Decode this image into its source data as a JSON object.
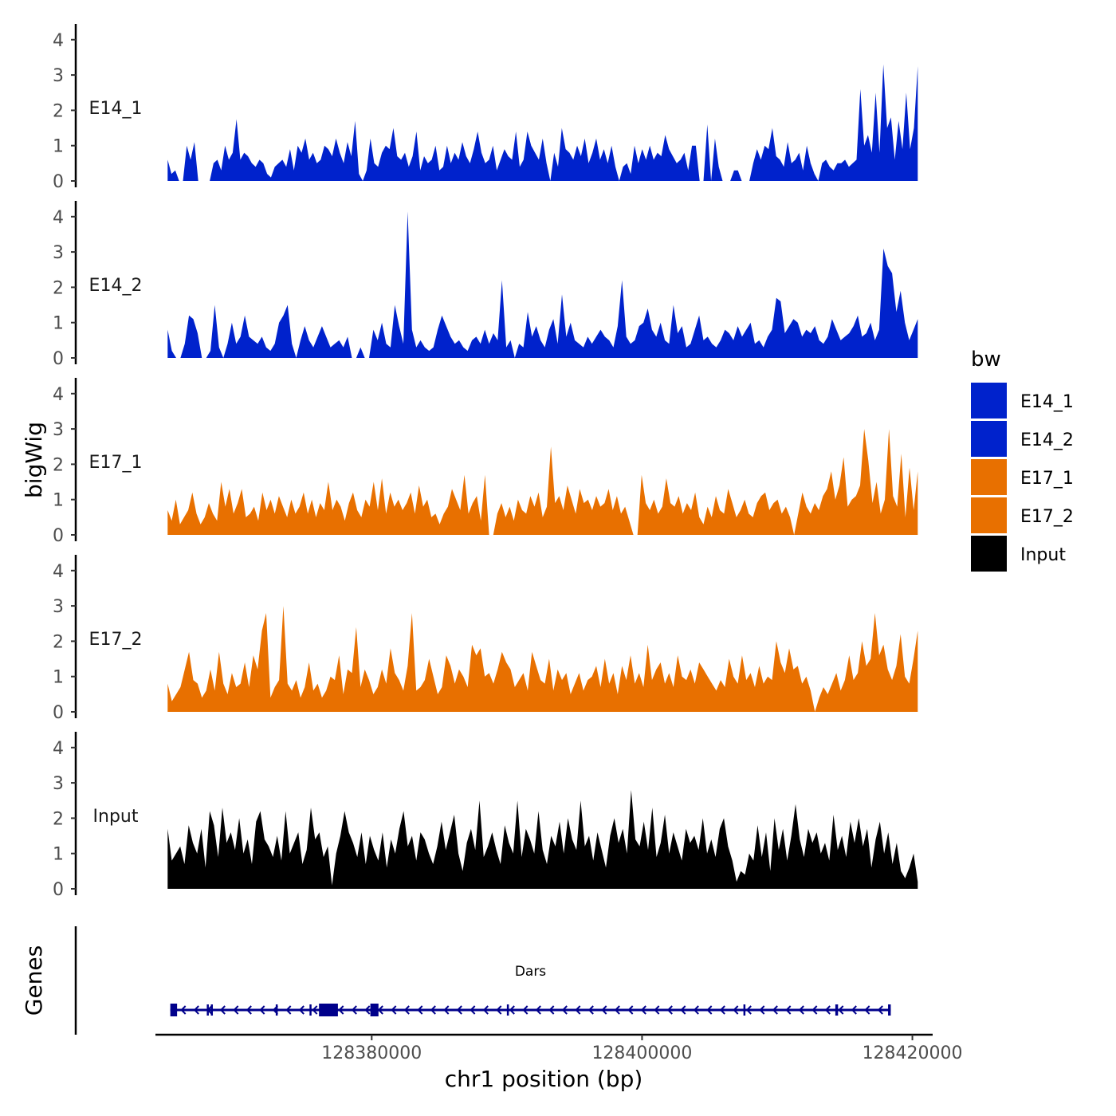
{
  "chart_data": {
    "type": "area",
    "ylabel": "bigWig",
    "xlabel": "chr1 position (bp)",
    "y_ticks": [
      "0",
      "1",
      "2",
      "3",
      "4"
    ],
    "ylim": [
      0,
      4.2
    ],
    "xlim": [
      128364000,
      128421500
    ],
    "x_ticks": [
      {
        "value": 128380000,
        "label": "128380000"
      },
      {
        "value": 128400000,
        "label": "128400000"
      },
      {
        "value": 128420000,
        "label": "128420000"
      }
    ],
    "legend": {
      "title": "bw",
      "entries": [
        {
          "label": "E14_1",
          "color": "#0022cc"
        },
        {
          "label": "E14_2",
          "color": "#0022cc"
        },
        {
          "label": "E17_1",
          "color": "#e87000"
        },
        {
          "label": "E17_2",
          "color": "#e87000"
        },
        {
          "label": "Input",
          "color": "#000000"
        }
      ]
    },
    "series": [
      {
        "name": "E14_1",
        "color": "#0022cc",
        "x_start": 128364900,
        "x_end": 128420400,
        "values": [
          0.6,
          0.2,
          0.3,
          0,
          0,
          1.0,
          0.6,
          1.1,
          0,
          0,
          0,
          0,
          0.5,
          0.6,
          0.3,
          1.0,
          0.6,
          0.8,
          1.75,
          0.6,
          0.8,
          0.7,
          0.5,
          0.4,
          0.6,
          0.5,
          0.2,
          0.1,
          0.4,
          0.5,
          0.6,
          0.4,
          0.9,
          0.3,
          1.0,
          0.8,
          1.2,
          0.6,
          0.8,
          0.5,
          0.6,
          1.0,
          0.9,
          0.7,
          1.2,
          0.8,
          0.5,
          1.1,
          0.7,
          1.7,
          0.2,
          0,
          0.3,
          1.2,
          0.5,
          0.4,
          0.8,
          1.0,
          0.9,
          1.5,
          0.7,
          0.6,
          0.8,
          0.4,
          0.7,
          1.4,
          0.3,
          0.7,
          0.5,
          0.6,
          1.0,
          0.3,
          0.4,
          1.0,
          0.5,
          0.8,
          0.6,
          1.1,
          0.7,
          0.5,
          0.9,
          1.4,
          0.8,
          0.5,
          0.6,
          1.0,
          0.3,
          0.6,
          0.9,
          0.7,
          0.6,
          1.4,
          0.4,
          0.6,
          1.4,
          1.0,
          0.8,
          0.6,
          1.2,
          0.5,
          0,
          0.8,
          0.4,
          1.5,
          0.9,
          0.8,
          0.6,
          1.0,
          0.7,
          1.2,
          0.5,
          0.8,
          1.2,
          0.6,
          0.9,
          0.5,
          1.0,
          0.4,
          0,
          0.4,
          0.5,
          0.2,
          1.0,
          0.5,
          0.9,
          0.6,
          1.0,
          0.6,
          0.8,
          0.7,
          1.3,
          0.9,
          0.7,
          0.5,
          0.6,
          0.8,
          0.3,
          1.0,
          1.0,
          0,
          0,
          1.6,
          0,
          1.2,
          0.4,
          0,
          0,
          0,
          0.3,
          0.3,
          0,
          0,
          0,
          0.5,
          0.9,
          0.6,
          1.0,
          0.9,
          1.5,
          0.7,
          0.6,
          0.4,
          1.1,
          0.5,
          0.6,
          0.8,
          0.3,
          1.0,
          0.5,
          0.2,
          0,
          0.5,
          0.6,
          0.4,
          0.3,
          0.5,
          0.5,
          0.6,
          0.4,
          0.5,
          0.6,
          2.6,
          1.0,
          1.3,
          0.8,
          2.5,
          0.8,
          3.3,
          1.5,
          1.8,
          0.6,
          1.7,
          0.9,
          2.5,
          0.9,
          1.5,
          3.25
        ]
      },
      {
        "name": "E14_2",
        "color": "#0022cc",
        "x_start": 128364900,
        "x_end": 128420400,
        "values": [
          0.8,
          0.2,
          0,
          0,
          0.4,
          1.2,
          1.1,
          0.7,
          0,
          0,
          0.2,
          1.5,
          0.3,
          0,
          0.4,
          1.0,
          0.4,
          0.6,
          1.2,
          0.6,
          0.5,
          0.4,
          0.6,
          0.3,
          0.2,
          0.4,
          1.0,
          1.2,
          1.5,
          0.4,
          0,
          0.5,
          0.9,
          0.5,
          0.3,
          0.6,
          0.9,
          0.6,
          0.3,
          0.4,
          0.5,
          0.3,
          0.6,
          0,
          0,
          0.3,
          0,
          0,
          0.8,
          0.5,
          1.0,
          0.4,
          0.3,
          1.5,
          0.9,
          0.4,
          4.15,
          0.8,
          0.3,
          0.5,
          0.3,
          0.2,
          0.3,
          0.8,
          1.2,
          0.9,
          0.6,
          0.4,
          0.5,
          0.3,
          0.2,
          0.5,
          0.6,
          0.4,
          0.8,
          0.4,
          0.7,
          0.5,
          2.2,
          0.3,
          0.5,
          0,
          0.4,
          0.3,
          1.3,
          0.6,
          0.9,
          0.5,
          0.3,
          0.8,
          1.1,
          0.4,
          1.8,
          0.6,
          1.0,
          0.5,
          0.4,
          0.3,
          0.6,
          0.4,
          0.6,
          0.8,
          0.6,
          0.5,
          0.3,
          0.9,
          2.2,
          0.6,
          0.4,
          0.5,
          0.9,
          1.0,
          1.4,
          0.8,
          0.6,
          1.0,
          0.5,
          0.4,
          1.5,
          0.7,
          0.9,
          0.3,
          0.4,
          0.8,
          1.2,
          0.5,
          0.6,
          0.4,
          0.3,
          0.5,
          0.8,
          0.7,
          0.5,
          0.9,
          0.6,
          0.8,
          1.0,
          0.4,
          0.5,
          0.3,
          0.6,
          0.8,
          1.7,
          1.6,
          0.7,
          0.9,
          1.1,
          1.0,
          0.6,
          0.8,
          0.7,
          0.9,
          0.5,
          0.4,
          0.6,
          1.1,
          0.8,
          0.5,
          0.6,
          0.7,
          0.9,
          1.2,
          0.6,
          0.7,
          1.0,
          0.5,
          0.8,
          3.1,
          2.6,
          2.4,
          1.3,
          1.9,
          1.0,
          0.5,
          0.8,
          1.1
        ]
      },
      {
        "name": "E17_1",
        "color": "#e87000",
        "x_start": 128364900,
        "x_end": 128420400,
        "values": [
          0.7,
          0.4,
          1.0,
          0.3,
          0.5,
          0.7,
          1.2,
          0.6,
          0.3,
          0.5,
          0.9,
          0.6,
          0.4,
          1.5,
          0.8,
          1.3,
          0.6,
          0.9,
          1.3,
          0.5,
          0.6,
          0.8,
          0.4,
          1.2,
          0.7,
          1.0,
          0.6,
          1.1,
          0.8,
          0.5,
          1.0,
          0.6,
          0.8,
          1.2,
          0.6,
          1.0,
          0.5,
          0.9,
          0.7,
          1.5,
          0.7,
          1.0,
          0.8,
          0.4,
          0.9,
          1.2,
          0.7,
          0.5,
          1.0,
          0.8,
          1.5,
          0.7,
          1.6,
          0.6,
          1.2,
          0.8,
          1.0,
          0.7,
          0.9,
          1.2,
          0.6,
          1.4,
          0.8,
          1.0,
          0.5,
          0.6,
          0.3,
          0.6,
          0.8,
          1.3,
          1.0,
          0.7,
          1.7,
          0.6,
          0.9,
          1.1,
          0.4,
          1.7,
          0,
          0,
          0.6,
          0.9,
          0.5,
          0.8,
          0.4,
          1.0,
          0.7,
          0.6,
          1.1,
          0.8,
          1.2,
          0.5,
          0.8,
          2.5,
          0.9,
          1.1,
          0.7,
          1.4,
          1.0,
          0.6,
          1.3,
          0.9,
          1.0,
          0.7,
          1.1,
          0.8,
          0.9,
          1.3,
          0.7,
          1.1,
          0.6,
          0.8,
          0.4,
          0,
          0,
          1.7,
          0.9,
          0.7,
          1.0,
          0.6,
          0.8,
          1.6,
          0.9,
          0.8,
          1.1,
          0.6,
          0.9,
          0.7,
          1.2,
          0.5,
          0.3,
          0.8,
          0.5,
          1.1,
          0.7,
          0.6,
          1.3,
          0.9,
          0.5,
          0.7,
          1.0,
          0.6,
          0.5,
          0.9,
          1.1,
          1.2,
          0.7,
          0.9,
          1.0,
          0.6,
          0.8,
          0.5,
          0,
          0.6,
          1.2,
          0.8,
          0.6,
          0.9,
          0.7,
          1.1,
          1.3,
          1.8,
          1.0,
          1.4,
          2.2,
          0.8,
          1.0,
          1.1,
          1.4,
          3.0,
          2.1,
          0.9,
          1.5,
          0.6,
          1.0,
          3.0,
          1.1,
          0.8,
          2.3,
          0.5,
          1.9,
          0.7,
          1.8
        ]
      },
      {
        "name": "E17_2",
        "color": "#e87000",
        "x_start": 128364900,
        "x_end": 128420400,
        "values": [
          0.8,
          0.3,
          0.5,
          0.7,
          1.2,
          1.7,
          0.9,
          0.8,
          0.4,
          0.6,
          1.2,
          0.6,
          1.7,
          0.8,
          0.5,
          1.1,
          0.7,
          0.8,
          1.4,
          0.7,
          1.6,
          1.2,
          2.3,
          2.8,
          0.4,
          0.7,
          0.9,
          3.0,
          0.8,
          0.6,
          0.9,
          0.4,
          0.7,
          1.4,
          0.6,
          0.8,
          0.4,
          0.6,
          1.0,
          0.9,
          1.6,
          0.5,
          1.2,
          1.1,
          2.4,
          0.7,
          1.2,
          0.9,
          0.5,
          0.7,
          1.2,
          0.8,
          1.8,
          1.1,
          0.9,
          0.6,
          1.3,
          2.8,
          0.6,
          0.7,
          0.9,
          1.5,
          1.0,
          0.5,
          0.7,
          1.6,
          1.3,
          0.8,
          1.2,
          1.0,
          0.7,
          1.9,
          1.6,
          1.8,
          1.0,
          1.1,
          0.8,
          1.2,
          1.7,
          1.4,
          1.2,
          0.7,
          0.9,
          1.1,
          0.6,
          1.7,
          1.3,
          0.9,
          0.8,
          1.5,
          0.6,
          1.2,
          0.9,
          1.1,
          0.5,
          0.8,
          1.1,
          0.6,
          0.9,
          1.0,
          1.3,
          0.7,
          1.5,
          0.8,
          1.1,
          0.5,
          1.3,
          0.9,
          1.6,
          0.8,
          1.1,
          0.7,
          1.9,
          0.9,
          1.2,
          1.4,
          0.8,
          1.1,
          0.7,
          1.6,
          1.0,
          0.9,
          1.2,
          0.8,
          1.4,
          1.2,
          1.0,
          0.8,
          0.6,
          0.9,
          0.7,
          1.5,
          1.0,
          0.8,
          1.6,
          0.9,
          1.1,
          0.7,
          1.3,
          0.8,
          1.0,
          0.9,
          2.0,
          1.4,
          1.1,
          1.8,
          1.2,
          1.3,
          0.8,
          1.0,
          0.6,
          0,
          0.4,
          0.7,
          0.5,
          0.8,
          1.1,
          0.6,
          0.9,
          1.6,
          0.9,
          1.1,
          2.0,
          1.3,
          1.5,
          2.8,
          1.6,
          1.9,
          1.2,
          0.9,
          1.3,
          2.2,
          1.0,
          0.8,
          1.5,
          2.3
        ]
      },
      {
        "name": "Input",
        "color": "#000000",
        "x_start": 128364900,
        "x_end": 128420400,
        "values": [
          1.7,
          0.8,
          1.0,
          1.2,
          0.7,
          1.8,
          1.3,
          1.0,
          1.7,
          0.6,
          2.2,
          1.8,
          0.9,
          2.3,
          1.3,
          1.6,
          1.1,
          2.0,
          1.0,
          1.4,
          0.7,
          1.9,
          2.2,
          1.4,
          1.2,
          0.9,
          1.5,
          0.8,
          2.2,
          1.0,
          1.3,
          1.6,
          0.7,
          1.1,
          2.3,
          1.4,
          1.6,
          0.9,
          1.2,
          0.1,
          1.0,
          1.5,
          2.2,
          1.6,
          1.3,
          0.9,
          1.6,
          0.7,
          1.5,
          1.1,
          0.8,
          1.6,
          0.6,
          1.4,
          1.0,
          1.7,
          2.2,
          1.2,
          1.5,
          0.8,
          1.6,
          1.4,
          1.0,
          0.7,
          1.2,
          1.9,
          1.1,
          1.6,
          2.1,
          1.0,
          0.5,
          1.3,
          1.7,
          1.1,
          2.5,
          0.9,
          1.2,
          1.6,
          1.1,
          0.7,
          1.8,
          1.3,
          1.0,
          2.5,
          0.9,
          1.7,
          1.4,
          1.0,
          2.2,
          1.1,
          0.7,
          1.5,
          1.2,
          1.9,
          1.0,
          2.0,
          1.4,
          1.1,
          2.5,
          1.2,
          1.5,
          0.8,
          1.6,
          1.1,
          0.6,
          1.5,
          2.0,
          1.3,
          1.7,
          1.0,
          2.8,
          1.4,
          1.2,
          1.9,
          1.1,
          2.3,
          0.9,
          1.3,
          2.1,
          1.0,
          1.6,
          1.2,
          0.8,
          1.7,
          1.3,
          1.5,
          1.1,
          2.0,
          1.0,
          1.4,
          0.9,
          1.7,
          2.0,
          1.2,
          0.8,
          0.2,
          0.5,
          0.4,
          1.0,
          0.8,
          1.8,
          0.9,
          1.6,
          0.5,
          2.0,
          1.1,
          1.7,
          0.8,
          1.5,
          2.4,
          1.4,
          0.9,
          1.7,
          1.3,
          1.6,
          1.0,
          1.3,
          0.8,
          2.1,
          1.1,
          1.5,
          0.9,
          1.9,
          1.3,
          2.0,
          1.2,
          1.7,
          0.6,
          1.4,
          1.9,
          1.0,
          1.6,
          0.7,
          1.3,
          0.5,
          0.3,
          0.6,
          1.0,
          0.2
        ]
      }
    ],
    "genes": {
      "ylabel": "Genes",
      "name": "Dars",
      "color": "#00008b",
      "strand": "-",
      "start": 128365100,
      "end": 128418400,
      "exons": [
        {
          "start": 128365100,
          "end": 128365600
        },
        {
          "start": 128367800,
          "end": 128367900
        },
        {
          "start": 128368100,
          "end": 128368200
        },
        {
          "start": 128372900,
          "end": 128373000
        },
        {
          "start": 128375400,
          "end": 128375500
        },
        {
          "start": 128376100,
          "end": 128377500
        },
        {
          "start": 128379900,
          "end": 128380500
        },
        {
          "start": 128390000,
          "end": 128390100
        },
        {
          "start": 128407500,
          "end": 128407600
        },
        {
          "start": 128414300,
          "end": 128414500
        },
        {
          "start": 128418200,
          "end": 128418400
        }
      ]
    }
  }
}
